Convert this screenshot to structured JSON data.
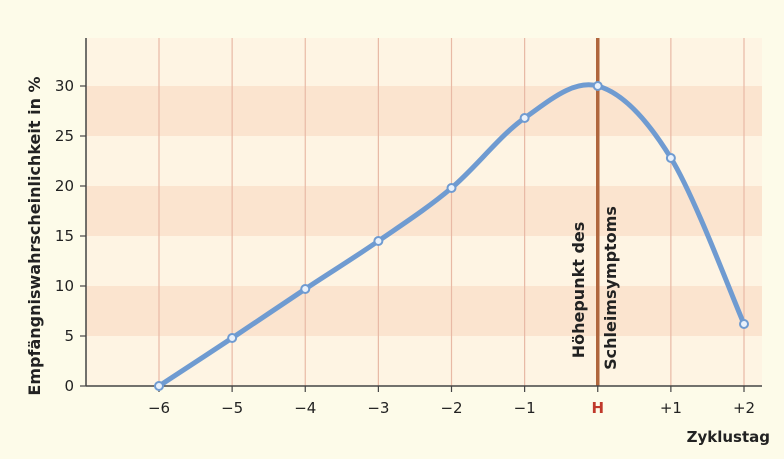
{
  "chart_data": {
    "type": "line",
    "xlabel": "Zyklustag",
    "ylabel": "Empfängniswahrscheinlichkeit in %",
    "categories": [
      "−6",
      "−5",
      "−4",
      "−3",
      "−2",
      "−1",
      "H",
      "+1",
      "+2"
    ],
    "series": [
      {
        "values": [
          0,
          4.8,
          9.7,
          14.5,
          19.8,
          26.8,
          30,
          22.8,
          6.2
        ]
      }
    ],
    "ylim": [
      0,
      33
    ],
    "yticks": [
      0,
      5,
      10,
      15,
      20,
      25,
      30
    ],
    "grid": true,
    "annotation": {
      "category": "H",
      "lines": [
        "Höhepunkt des",
        "Schleimsymptoms"
      ]
    },
    "colors": {
      "line": "#6f9bd1",
      "marker_fill": "#e9f1fb",
      "peak_line": "#b0663d",
      "band_dark": "#fbe4cf",
      "band_light": "#fef4e3",
      "background": "#fdfbe9",
      "gridline": "#e8b9a5",
      "highlight_label": "#c0392b",
      "axis": "#444444",
      "text": "#222222"
    }
  }
}
